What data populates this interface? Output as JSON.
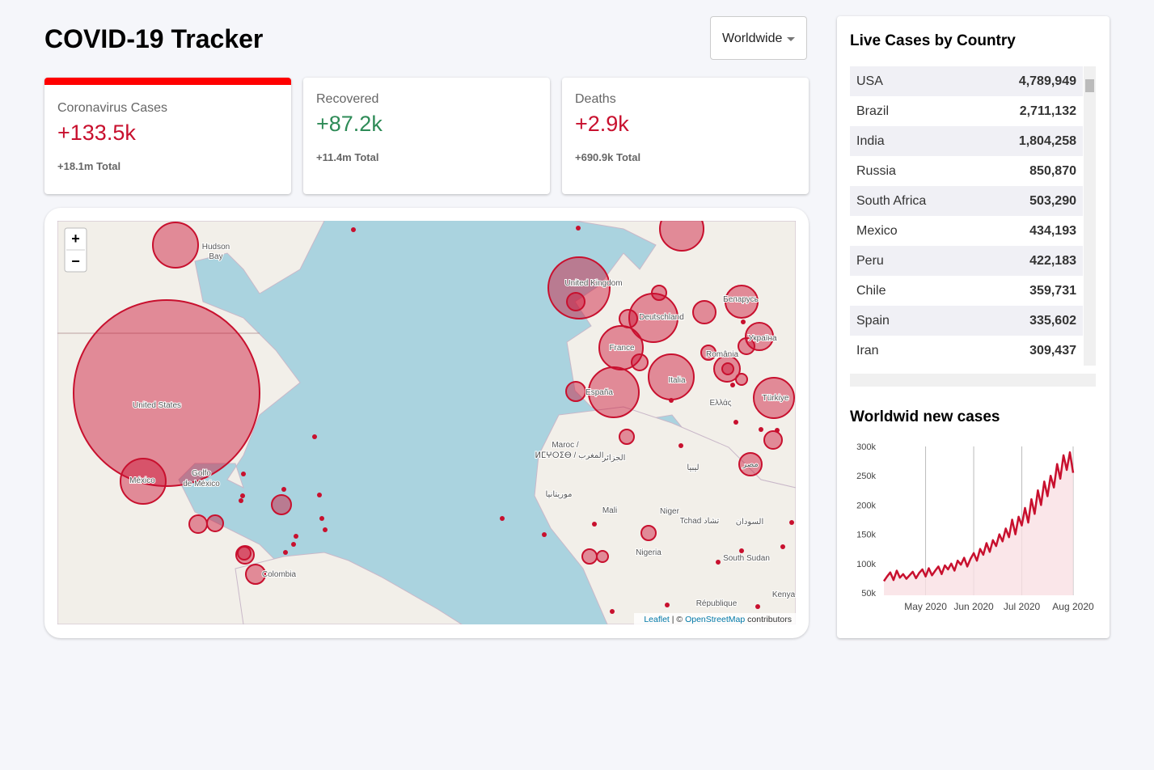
{
  "header": {
    "title": "COVID-19 Tracker",
    "selector": "Worldwide"
  },
  "cards": [
    {
      "title": "Coronavirus Cases",
      "value": "+133.5k",
      "total": "+18.1m Total"
    },
    {
      "title": "Recovered",
      "value": "+87.2k",
      "total": "+11.4m Total"
    },
    {
      "title": "Deaths",
      "value": "+2.9k",
      "total": "+690.9k Total"
    }
  ],
  "map": {
    "zoom_in": "+",
    "zoom_out": "−",
    "labels": [
      "Hudson",
      "Bay",
      "United States",
      "México",
      "Golfo",
      "de México",
      "Colombia",
      "United Kingdom",
      "Deutschland",
      "France",
      "España",
      "Italia",
      "Беларусь",
      "Україна",
      "România",
      "Türkiye",
      "Ελλάς",
      "Maroc /",
      "ⵍⵎⵖⵔⵉⴱ / المغرب",
      "الجزائر",
      "ليبيا",
      "مصر",
      "موريتانيا",
      "Mali",
      "Niger",
      "Tchad تشاد",
      "السودان",
      "Nigeria",
      "South Sudan",
      "Kenya",
      "République"
    ],
    "attribution": {
      "leaflet": "Leaflet",
      "separator": " | © ",
      "osm": "OpenStreetMap",
      "suffix": " contributors"
    }
  },
  "table": {
    "title": "Live Cases by Country",
    "rows": [
      [
        "USA",
        "4,789,949"
      ],
      [
        "Brazil",
        "2,711,132"
      ],
      [
        "India",
        "1,804,258"
      ],
      [
        "Russia",
        "850,870"
      ],
      [
        "South Africa",
        "503,290"
      ],
      [
        "Mexico",
        "434,193"
      ],
      [
        "Peru",
        "422,183"
      ],
      [
        "Chile",
        "359,731"
      ],
      [
        "Spain",
        "335,602"
      ],
      [
        "Iran",
        "309,437"
      ]
    ]
  },
  "chart_data": {
    "type": "line",
    "title": "Worldwid new cases",
    "color": "#c8102e",
    "fill": "#f9e0e4",
    "categories": [
      null,
      null,
      null,
      null,
      null,
      null,
      null,
      null,
      null,
      null,
      null,
      null,
      null,
      "May 2020",
      null,
      null,
      null,
      null,
      null,
      null,
      null,
      null,
      null,
      null,
      null,
      null,
      null,
      null,
      "Jun 2020",
      null,
      null,
      null,
      null,
      null,
      null,
      null,
      null,
      null,
      null,
      null,
      null,
      null,
      null,
      "Jul 2020",
      null,
      null,
      null,
      null,
      null,
      null,
      null,
      null,
      null,
      null,
      null,
      null,
      null,
      null,
      null,
      "Aug 2020"
    ],
    "values": [
      70000,
      78000,
      85000,
      72000,
      88000,
      76000,
      82000,
      74000,
      80000,
      86000,
      75000,
      84000,
      90000,
      78000,
      92000,
      80000,
      88000,
      95000,
      82000,
      97000,
      90000,
      100000,
      88000,
      105000,
      98000,
      110000,
      95000,
      108000,
      118000,
      105000,
      125000,
      115000,
      135000,
      120000,
      140000,
      130000,
      150000,
      138000,
      160000,
      145000,
      175000,
      150000,
      180000,
      165000,
      195000,
      170000,
      210000,
      185000,
      225000,
      200000,
      240000,
      215000,
      250000,
      230000,
      270000,
      245000,
      285000,
      260000,
      290000,
      255000
    ],
    "ylim": [
      50000,
      300000
    ],
    "yticks": [
      {
        "value": 50000,
        "label": "50k"
      },
      {
        "value": 100000,
        "label": "100k"
      },
      {
        "value": 150000,
        "label": "150k"
      },
      {
        "value": 200000,
        "label": "200k"
      },
      {
        "value": 250000,
        "label": "250k"
      },
      {
        "value": 300000,
        "label": "300k"
      }
    ]
  }
}
